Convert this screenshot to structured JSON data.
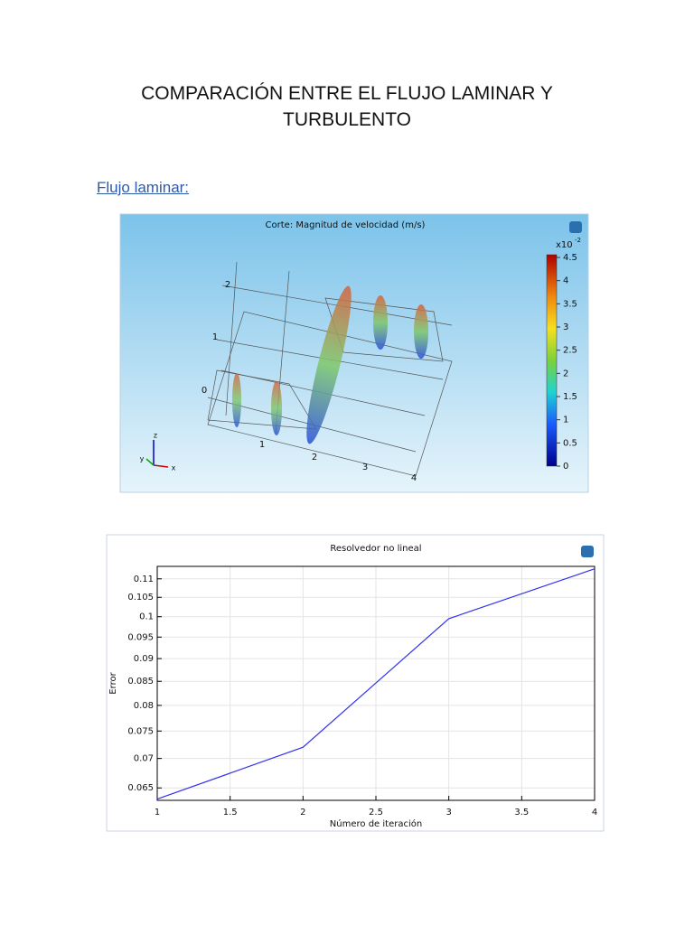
{
  "document": {
    "title_line1": "COMPARACIÓN ENTRE EL FLUJO LAMINAR Y",
    "title_line2": "TURBULENTO",
    "section": "Flujo laminar:",
    "figure": {
      "title": "Corte: Magnitud de velocidad (m/s)",
      "colorbar_unit": "x10",
      "colorbar_exponent": "-2",
      "colorbar_range": [
        0,
        4.5
      ],
      "colorbar_ticks": [
        0,
        0.5,
        1,
        1.5,
        2,
        2.5,
        3,
        3.5,
        4,
        4.5
      ],
      "z_ticks": [
        "0",
        "1",
        "2"
      ],
      "x_ticks": [
        "1",
        "2",
        "3",
        "4"
      ],
      "axis_names": [
        "z",
        "y",
        "x"
      ]
    }
  },
  "chart_data": {
    "type": "line",
    "title": "Resolvedor no lineal",
    "x_label": "Número de iteración",
    "y_label": "Error",
    "x": [
      1,
      2,
      3,
      4
    ],
    "series": [
      {
        "name": "Error",
        "color": "#3333ee",
        "values": [
          0.0632,
          0.072,
          0.0995,
          0.1128
        ]
      }
    ],
    "xlim": [
      1,
      4
    ],
    "xticks": [
      1,
      1.5,
      2,
      2.5,
      3,
      3.5,
      4
    ],
    "ylim": [
      0.063,
      0.1135
    ],
    "yticks": [
      0.065,
      0.07,
      0.075,
      0.08,
      0.085,
      0.09,
      0.095,
      0.1,
      0.105,
      0.11
    ],
    "log_y": true,
    "grid": true
  }
}
